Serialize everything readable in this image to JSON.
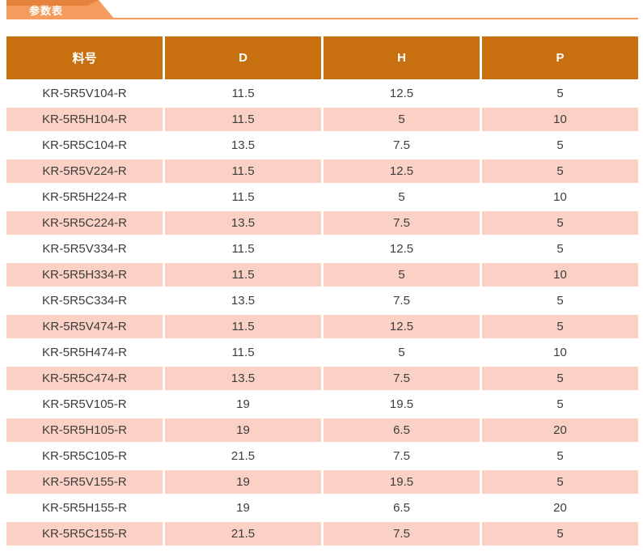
{
  "page": {
    "tab_title": "参数表"
  },
  "colors": {
    "tab_light": "#F39C5E",
    "tab_dark": "#E5823B",
    "header_bg": "#C86F10",
    "header_text": "#FFFFFF",
    "row_pink": "#FAD1C4",
    "row_white": "#FFFFFF",
    "text_dark": "#3D3D3D"
  },
  "table": {
    "columns": [
      "料号",
      "D",
      "H",
      "P"
    ],
    "rows": [
      [
        "KR-5R5V104-R",
        "11.5",
        "12.5",
        "5"
      ],
      [
        "KR-5R5H104-R",
        "11.5",
        "5",
        "10"
      ],
      [
        "KR-5R5C104-R",
        "13.5",
        "7.5",
        "5"
      ],
      [
        "KR-5R5V224-R",
        "11.5",
        "12.5",
        "5"
      ],
      [
        "KR-5R5H224-R",
        "11.5",
        "5",
        "10"
      ],
      [
        "KR-5R5C224-R",
        "13.5",
        "7.5",
        "5"
      ],
      [
        "KR-5R5V334-R",
        "11.5",
        "12.5",
        "5"
      ],
      [
        "KR-5R5H334-R",
        "11.5",
        "5",
        "10"
      ],
      [
        "KR-5R5C334-R",
        "13.5",
        "7.5",
        "5"
      ],
      [
        "KR-5R5V474-R",
        "11.5",
        "12.5",
        "5"
      ],
      [
        "KR-5R5H474-R",
        "11.5",
        "5",
        "10"
      ],
      [
        "KR-5R5C474-R",
        "13.5",
        "7.5",
        "5"
      ],
      [
        "KR-5R5V105-R",
        "19",
        "19.5",
        "5"
      ],
      [
        "KR-5R5H105-R",
        "19",
        "6.5",
        "20"
      ],
      [
        "KR-5R5C105-R",
        "21.5",
        "7.5",
        "5"
      ],
      [
        "KR-5R5V155-R",
        "19",
        "19.5",
        "5"
      ],
      [
        "KR-5R5H155-R",
        "19",
        "6.5",
        "20"
      ],
      [
        "KR-5R5C155-R",
        "21.5",
        "7.5",
        "5"
      ]
    ]
  }
}
